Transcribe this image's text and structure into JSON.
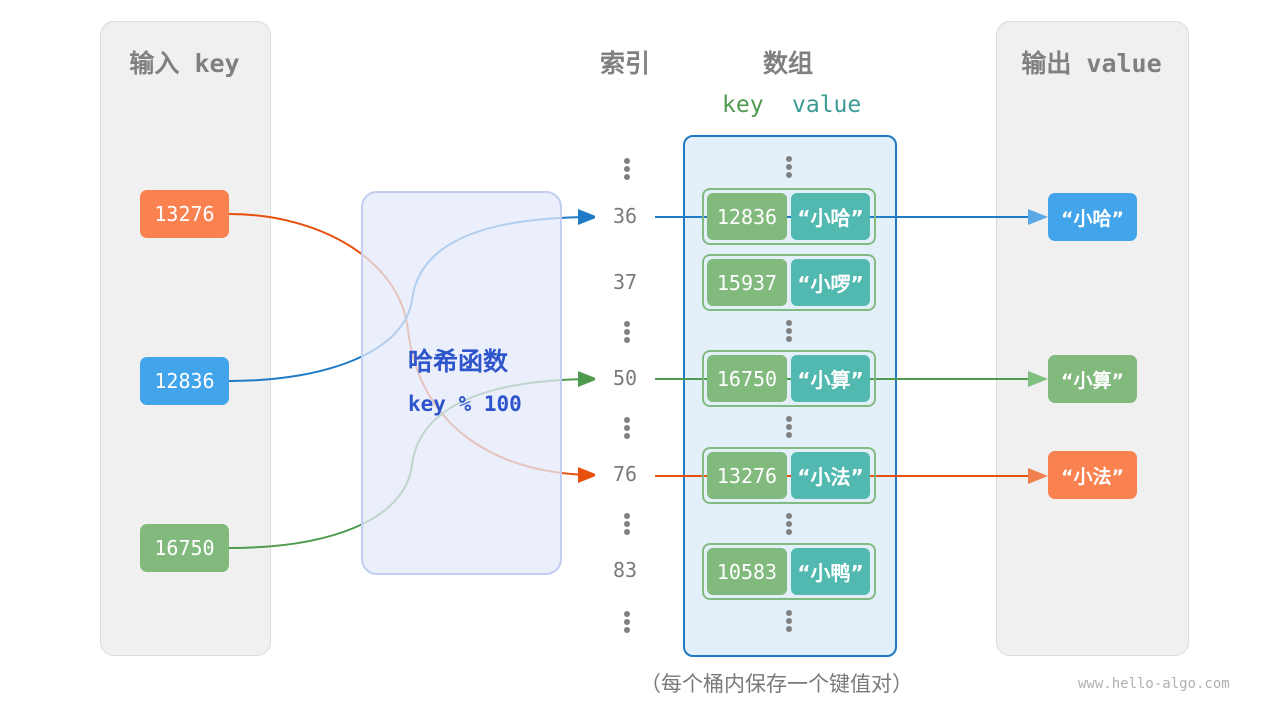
{
  "input_panel": {
    "title": "输入 key",
    "keys": [
      {
        "label": "13276",
        "color": "#fa8150"
      },
      {
        "label": "12836",
        "color": "#42a5ec"
      },
      {
        "label": "16750",
        "color": "#82b97d"
      }
    ]
  },
  "hash_function": {
    "title": "哈希函数",
    "formula": "key % 100"
  },
  "index_header": "索引",
  "array_header": "数组",
  "array_subheader": {
    "key": "key",
    "value": "value"
  },
  "indices": [
    "36",
    "37",
    "50",
    "76",
    "83"
  ],
  "buckets": [
    {
      "key": "12836",
      "value": "“小哈”"
    },
    {
      "key": "15937",
      "value": "“小啰”"
    },
    {
      "key": "16750",
      "value": "“小算”"
    },
    {
      "key": "13276",
      "value": "“小法”"
    },
    {
      "key": "10583",
      "value": "“小鸭”"
    }
  ],
  "output_panel": {
    "title": "输出 value",
    "values": [
      {
        "label": "“小哈”",
        "color": "#42a5ec"
      },
      {
        "label": "“小算”",
        "color": "#82b97d"
      },
      {
        "label": "“小法”",
        "color": "#fa8150"
      }
    ]
  },
  "caption": "（每个桶内保存一个键值对）",
  "watermark": "www.hello-algo.com"
}
